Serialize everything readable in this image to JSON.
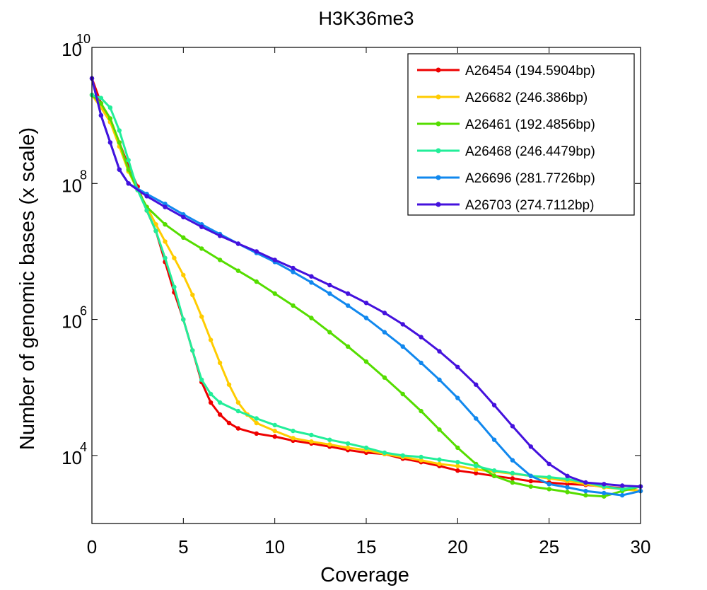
{
  "chart_data": {
    "type": "line",
    "title": "H3K36me3",
    "xlabel": "Coverage",
    "ylabel": "Number of genomic bases (x scale)",
    "xlim": [
      0,
      30
    ],
    "ylim": [
      1000,
      10000000000
    ],
    "yscale": "log",
    "grid": false,
    "legend_position": "top-right",
    "x_ticks": [
      "0",
      "5",
      "10",
      "15",
      "20",
      "25",
      "30"
    ],
    "y_ticks": [
      {
        "value": 10000,
        "base": "10",
        "exp": "4"
      },
      {
        "value": 1000000,
        "base": "10",
        "exp": "6"
      },
      {
        "value": 100000000,
        "base": "10",
        "exp": "8"
      },
      {
        "value": 10000000000,
        "base": "10",
        "exp": "10"
      }
    ],
    "series": [
      {
        "name": "A26454 (194.5904bp)",
        "color": "#ee0000",
        "points": [
          [
            0,
            3500000000.0
          ],
          [
            0.5,
            1500000000.0
          ],
          [
            1,
            800000000.0
          ],
          [
            1.5,
            400000000.0
          ],
          [
            2,
            180000000.0
          ],
          [
            2.5,
            90000000.0
          ],
          [
            3,
            40000000.0
          ],
          [
            3.5,
            20000000.0
          ],
          [
            4,
            7000000.0
          ],
          [
            4.5,
            2500000.0
          ],
          [
            5,
            1000000.0
          ],
          [
            5.5,
            350000.0
          ],
          [
            6,
            120000.0
          ],
          [
            6.5,
            60000.0
          ],
          [
            7,
            40000.0
          ],
          [
            7.5,
            30000.0
          ],
          [
            8,
            25000.0
          ],
          [
            9,
            21000.0
          ],
          [
            10,
            19000.0
          ],
          [
            11,
            16500.0
          ],
          [
            12,
            15000.0
          ],
          [
            13,
            13500.0
          ],
          [
            14,
            12000.0
          ],
          [
            15,
            11000.0
          ],
          [
            16,
            10500.0
          ],
          [
            17,
            9000.0
          ],
          [
            18,
            8000.0
          ],
          [
            19,
            7000.0
          ],
          [
            20,
            6000.0
          ],
          [
            21,
            5500.0
          ],
          [
            22,
            5000.0
          ],
          [
            23,
            4600.0
          ],
          [
            24,
            4200.0
          ],
          [
            25,
            4000.0
          ],
          [
            26,
            3800.0
          ],
          [
            27,
            3700.0
          ],
          [
            28,
            3500.0
          ],
          [
            29,
            3300.0
          ],
          [
            30,
            3000.0
          ]
        ]
      },
      {
        "name": "A26682 (246.386bp)",
        "color": "#ffcc00",
        "points": [
          [
            0,
            2000000000.0
          ],
          [
            0.5,
            1300000000.0
          ],
          [
            1,
            800000000.0
          ],
          [
            1.5,
            350000000.0
          ],
          [
            2,
            150000000.0
          ],
          [
            2.5,
            80000000.0
          ],
          [
            3,
            45000000.0
          ],
          [
            3.5,
            25000000.0
          ],
          [
            4,
            14000000.0
          ],
          [
            4.5,
            8000000.0
          ],
          [
            5,
            4500000.0
          ],
          [
            5.5,
            2300000.0
          ],
          [
            6,
            1100000.0
          ],
          [
            6.5,
            500000.0
          ],
          [
            7,
            230000.0
          ],
          [
            7.5,
            110000.0
          ],
          [
            8,
            60000.0
          ],
          [
            8.5,
            40000.0
          ],
          [
            9,
            30000.0
          ],
          [
            10,
            23000.0
          ],
          [
            11,
            18000.0
          ],
          [
            12,
            16000.0
          ],
          [
            13,
            14500.0
          ],
          [
            14,
            13000.0
          ],
          [
            15,
            12000.0
          ],
          [
            16,
            10500.0
          ],
          [
            17,
            9500.0
          ],
          [
            18,
            8500.0
          ],
          [
            19,
            7500.0
          ],
          [
            20,
            7000.0
          ],
          [
            21,
            6200.0
          ],
          [
            22,
            5800.0
          ],
          [
            23,
            5400.0
          ],
          [
            24,
            5000.0
          ],
          [
            25,
            4600.0
          ],
          [
            26,
            4200.0
          ],
          [
            27,
            3800.0
          ],
          [
            28,
            3400.0
          ],
          [
            29,
            3200.0
          ],
          [
            30,
            3000.0
          ]
        ]
      },
      {
        "name": "A26461 (192.4856bp)",
        "color": "#55dd00",
        "points": [
          [
            0,
            2000000000.0
          ],
          [
            0.5,
            1500000000.0
          ],
          [
            1,
            900000000.0
          ],
          [
            1.5,
            400000000.0
          ],
          [
            2,
            160000000.0
          ],
          [
            2.5,
            80000000.0
          ],
          [
            3,
            45000000.0
          ],
          [
            4,
            25000000.0
          ],
          [
            5,
            16000000.0
          ],
          [
            6,
            11000000.0
          ],
          [
            7,
            7500000.0
          ],
          [
            8,
            5200000.0
          ],
          [
            9,
            3600000.0
          ],
          [
            10,
            2400000.0
          ],
          [
            11,
            1600000.0
          ],
          [
            12,
            1050000.0
          ],
          [
            13,
            650000.0
          ],
          [
            14,
            400000.0
          ],
          [
            15,
            240000.0
          ],
          [
            16,
            140000.0
          ],
          [
            17,
            80000.0
          ],
          [
            18,
            45000.0
          ],
          [
            19,
            24000.0
          ],
          [
            20,
            13000.0
          ],
          [
            21,
            7500.0
          ],
          [
            22,
            5000.0
          ],
          [
            23,
            4000.0
          ],
          [
            24,
            3500.0
          ],
          [
            25,
            3200.0
          ],
          [
            26,
            2900.0
          ],
          [
            27,
            2600.0
          ],
          [
            28,
            2500.0
          ],
          [
            29,
            3000.0
          ],
          [
            30,
            3500.0
          ]
        ]
      },
      {
        "name": "A26468 (246.4479bp)",
        "color": "#22ee99",
        "points": [
          [
            0,
            2000000000.0
          ],
          [
            0.5,
            1800000000.0
          ],
          [
            1,
            1300000000.0
          ],
          [
            1.5,
            600000000.0
          ],
          [
            2,
            220000000.0
          ],
          [
            2.5,
            80000000.0
          ],
          [
            3,
            40000000.0
          ],
          [
            3.5,
            20000000.0
          ],
          [
            4,
            8000000.0
          ],
          [
            4.5,
            3000000.0
          ],
          [
            5,
            1000000.0
          ],
          [
            5.5,
            350000.0
          ],
          [
            6,
            130000.0
          ],
          [
            6.5,
            80000.0
          ],
          [
            7,
            60000.0
          ],
          [
            8,
            45000.0
          ],
          [
            9,
            35000.0
          ],
          [
            10,
            28000.0
          ],
          [
            11,
            23000.0
          ],
          [
            12,
            20000.0
          ],
          [
            13,
            17000.0
          ],
          [
            14,
            15000.0
          ],
          [
            15,
            13000.0
          ],
          [
            16,
            11000.0
          ],
          [
            17,
            10000.0
          ],
          [
            18,
            9500.0
          ],
          [
            19,
            8700.0
          ],
          [
            20,
            8000.0
          ],
          [
            21,
            7000.0
          ],
          [
            22,
            6000.0
          ],
          [
            23,
            5500.0
          ],
          [
            24,
            5000.0
          ],
          [
            25,
            4800.0
          ],
          [
            26,
            4500.0
          ],
          [
            27,
            4000.0
          ],
          [
            28,
            3500.0
          ],
          [
            29,
            3200.0
          ],
          [
            30,
            3500.0
          ]
        ]
      },
      {
        "name": "A26696 (281.7726bp)",
        "color": "#1188ee",
        "points": [
          [
            0,
            3500000000.0
          ],
          [
            0.5,
            1000000000.0
          ],
          [
            1,
            400000000.0
          ],
          [
            1.5,
            160000000.0
          ],
          [
            2,
            100000000.0
          ],
          [
            3,
            70000000.0
          ],
          [
            4,
            50000000.0
          ],
          [
            5,
            35000000.0
          ],
          [
            6,
            25000000.0
          ],
          [
            7,
            18000000.0
          ],
          [
            8,
            13000000.0
          ],
          [
            9,
            9500000.0
          ],
          [
            10,
            7000000.0
          ],
          [
            11,
            5000000.0
          ],
          [
            12,
            3500000.0
          ],
          [
            13,
            2400000.0
          ],
          [
            14,
            1600000.0
          ],
          [
            15,
            1050000.0
          ],
          [
            16,
            650000.0
          ],
          [
            17,
            400000.0
          ],
          [
            18,
            230000.0
          ],
          [
            19,
            130000.0
          ],
          [
            20,
            70000.0
          ],
          [
            21,
            35000.0
          ],
          [
            22,
            17000.0
          ],
          [
            23,
            8500.0
          ],
          [
            24,
            5000.0
          ],
          [
            25,
            3800.0
          ],
          [
            26,
            3400.0
          ],
          [
            27,
            3000.0
          ],
          [
            28,
            2800.0
          ],
          [
            29,
            2600.0
          ],
          [
            30,
            3000.0
          ]
        ]
      },
      {
        "name": "A26703 (274.7112bp)",
        "color": "#4411dd",
        "points": [
          [
            0,
            3500000000.0
          ],
          [
            0.5,
            1000000000.0
          ],
          [
            1,
            400000000.0
          ],
          [
            1.5,
            160000000.0
          ],
          [
            2,
            100000000.0
          ],
          [
            3,
            65000000.0
          ],
          [
            4,
            45000000.0
          ],
          [
            5,
            32000000.0
          ],
          [
            6,
            23000000.0
          ],
          [
            7,
            17000000.0
          ],
          [
            8,
            13000000.0
          ],
          [
            9,
            10000000.0
          ],
          [
            10,
            7500000.0
          ],
          [
            11,
            5700000.0
          ],
          [
            12,
            4300000.0
          ],
          [
            13,
            3200000.0
          ],
          [
            14,
            2400000.0
          ],
          [
            15,
            1750000.0
          ],
          [
            16,
            1250000.0
          ],
          [
            17,
            850000.0
          ],
          [
            18,
            550000.0
          ],
          [
            19,
            340000.0
          ],
          [
            20,
            200000.0
          ],
          [
            21,
            110000.0
          ],
          [
            22,
            55000.0
          ],
          [
            23,
            27000.0
          ],
          [
            24,
            13500.0
          ],
          [
            25,
            7500.0
          ],
          [
            26,
            5000.0
          ],
          [
            27,
            4000.0
          ],
          [
            28,
            3800.0
          ],
          [
            29,
            3600.0
          ],
          [
            30,
            3500.0
          ]
        ]
      }
    ]
  }
}
